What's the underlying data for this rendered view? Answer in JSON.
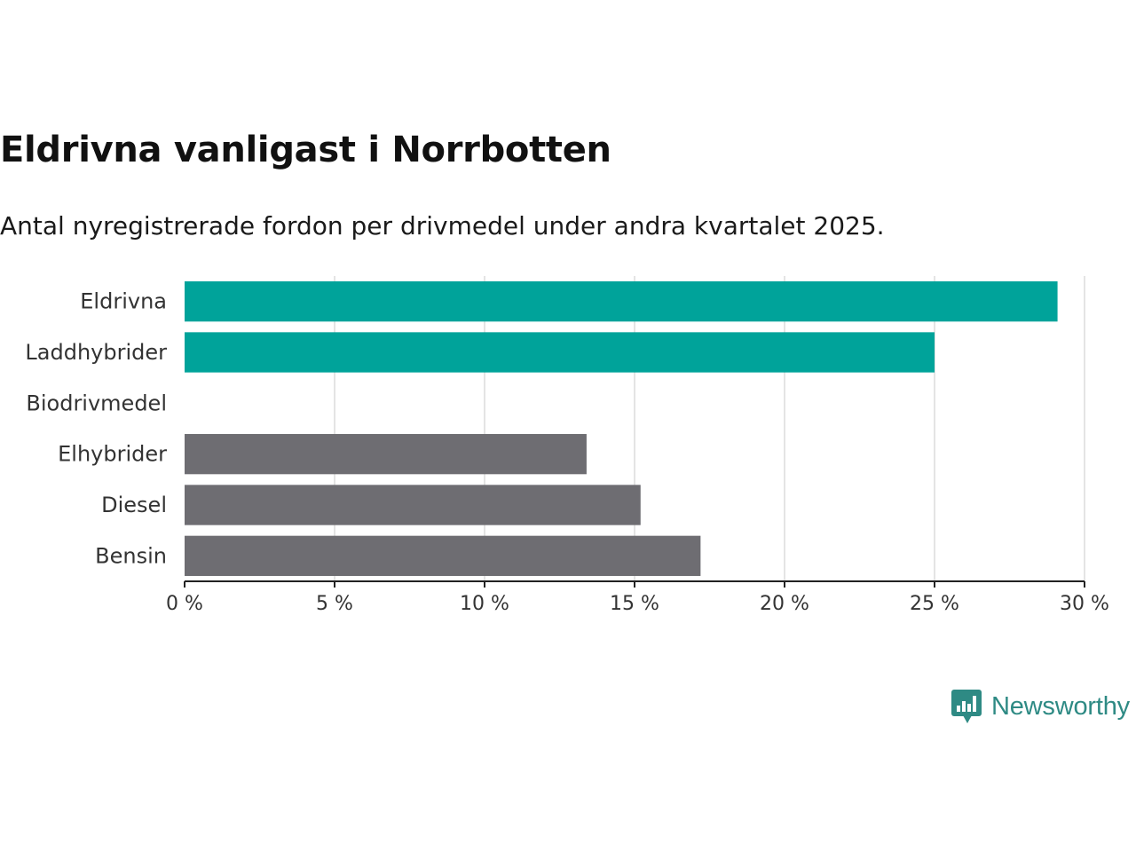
{
  "title": "Eldrivna vanligast i Norrbotten",
  "subtitle": "Antal nyregistrerade fordon per drivmedel under andra kvartalet 2025.",
  "brand": {
    "name": "Newsworthy",
    "icon": "newsworthy-logo-icon",
    "color": "#2e8a84"
  },
  "chart_data": {
    "type": "bar",
    "orientation": "horizontal",
    "categories": [
      "Eldrivna",
      "Laddhybrider",
      "Biodrivmedel",
      "Elhybrider",
      "Diesel",
      "Bensin"
    ],
    "values": [
      29.1,
      25.0,
      0,
      13.4,
      15.2,
      17.2
    ],
    "colors": [
      "#00a39a",
      "#00a39a",
      "#00a39a",
      "#6e6d72",
      "#6e6d72",
      "#6e6d72"
    ],
    "xlim": [
      0,
      30
    ],
    "xticks": [
      0,
      5,
      10,
      15,
      20,
      25,
      30
    ],
    "xtick_labels": [
      "0 %",
      "5 %",
      "10 %",
      "15 %",
      "20 %",
      "25 %",
      "30 %"
    ],
    "grid": true,
    "legend": "none"
  }
}
